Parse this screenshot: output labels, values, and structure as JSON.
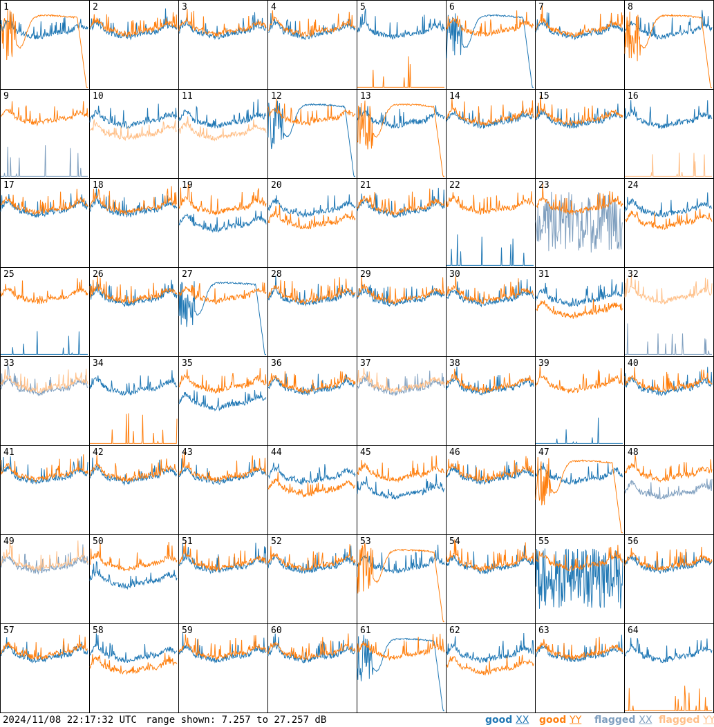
{
  "chart_data": {
    "type": "line",
    "layout": "8x8 small multiples",
    "panel_labels": [
      "1",
      "2",
      "3",
      "4",
      "5",
      "6",
      "7",
      "8",
      "9",
      "10",
      "11",
      "12",
      "13",
      "14",
      "15",
      "16",
      "17",
      "18",
      "19",
      "20",
      "21",
      "22",
      "23",
      "24",
      "25",
      "26",
      "27",
      "28",
      "29",
      "30",
      "31",
      "32",
      "33",
      "34",
      "35",
      "36",
      "37",
      "38",
      "39",
      "40",
      "41",
      "42",
      "43",
      "44",
      "45",
      "46",
      "47",
      "48",
      "49",
      "50",
      "51",
      "52",
      "53",
      "54",
      "55",
      "56",
      "57",
      "58",
      "59",
      "60",
      "61",
      "62",
      "63",
      "64"
    ],
    "range_db": [
      7.257,
      27.257
    ],
    "series_styles": [
      {
        "name": "good XX",
        "color": "#1f77b4"
      },
      {
        "name": "good YY",
        "color": "#ff7f0e"
      },
      {
        "name": "flagged XX",
        "color": "#7f9fbf"
      },
      {
        "name": "flagged YY",
        "color": "#ffbf87"
      }
    ],
    "grid": false,
    "panels": [
      {
        "xx": "good",
        "yy": "good",
        "xx_shape": "normal",
        "yy_shape": "rolloff"
      },
      {
        "xx": "good",
        "yy": "good",
        "xx_shape": "normal",
        "yy_shape": "normal"
      },
      {
        "xx": "good",
        "yy": "good",
        "xx_shape": "normal",
        "yy_shape": "normal"
      },
      {
        "xx": "good",
        "yy": "good",
        "xx_shape": "normal",
        "yy_shape": "normal"
      },
      {
        "xx": "good",
        "yy": "good",
        "xx_shape": "normal",
        "yy_shape": "spikes"
      },
      {
        "xx": "good",
        "yy": "good",
        "xx_shape": "rolloff",
        "yy_shape": "normal"
      },
      {
        "xx": "good",
        "yy": "good",
        "xx_shape": "normal",
        "yy_shape": "normal"
      },
      {
        "xx": "good",
        "yy": "good",
        "xx_shape": "normal",
        "yy_shape": "rolloff"
      },
      {
        "xx": "flagged",
        "yy": "good",
        "xx_shape": "spikes",
        "yy_shape": "normal"
      },
      {
        "xx": "good",
        "yy": "flagged",
        "xx_shape": "normal",
        "yy_shape": "low"
      },
      {
        "xx": "good",
        "yy": "flagged",
        "xx_shape": "normal",
        "yy_shape": "low"
      },
      {
        "xx": "good",
        "yy": "good",
        "xx_shape": "rolloff",
        "yy_shape": "normal"
      },
      {
        "xx": "good",
        "yy": "good",
        "xx_shape": "normal",
        "yy_shape": "rolloff"
      },
      {
        "xx": "good",
        "yy": "good",
        "xx_shape": "normal",
        "yy_shape": "normal"
      },
      {
        "xx": "good",
        "yy": "good",
        "xx_shape": "normal",
        "yy_shape": "normal"
      },
      {
        "xx": "good",
        "yy": "flagged",
        "xx_shape": "normal",
        "yy_shape": "spikes"
      },
      {
        "xx": "good",
        "yy": "good",
        "xx_shape": "normal",
        "yy_shape": "normal"
      },
      {
        "xx": "good",
        "yy": "good",
        "xx_shape": "normal",
        "yy_shape": "normal"
      },
      {
        "xx": "good",
        "yy": "good",
        "xx_shape": "low",
        "yy_shape": "normal"
      },
      {
        "xx": "good",
        "yy": "good",
        "xx_shape": "normal",
        "yy_shape": "low"
      },
      {
        "xx": "good",
        "yy": "good",
        "xx_shape": "normal",
        "yy_shape": "normal"
      },
      {
        "xx": "good",
        "yy": "good",
        "xx_shape": "spikes",
        "yy_shape": "normal"
      },
      {
        "xx": "flagged",
        "yy": "good",
        "xx_shape": "noise",
        "yy_shape": "normal"
      },
      {
        "xx": "good",
        "yy": "good",
        "xx_shape": "normal",
        "yy_shape": "low"
      },
      {
        "xx": "good",
        "yy": "good",
        "xx_shape": "spikes",
        "yy_shape": "normal"
      },
      {
        "xx": "good",
        "yy": "good",
        "xx_shape": "normal",
        "yy_shape": "normal"
      },
      {
        "xx": "good",
        "yy": "good",
        "xx_shape": "rolloff",
        "yy_shape": "normal"
      },
      {
        "xx": "good",
        "yy": "good",
        "xx_shape": "normal",
        "yy_shape": "normal"
      },
      {
        "xx": "good",
        "yy": "good",
        "xx_shape": "normal",
        "yy_shape": "normal"
      },
      {
        "xx": "good",
        "yy": "good",
        "xx_shape": "normal",
        "yy_shape": "normal"
      },
      {
        "xx": "good",
        "yy": "good",
        "xx_shape": "normal",
        "yy_shape": "low"
      },
      {
        "xx": "flagged",
        "yy": "flagged",
        "xx_shape": "spikes",
        "yy_shape": "normal"
      },
      {
        "xx": "flagged",
        "yy": "flagged",
        "xx_shape": "normal",
        "yy_shape": "normal"
      },
      {
        "xx": "good",
        "yy": "good",
        "xx_shape": "normal",
        "yy_shape": "spikes"
      },
      {
        "xx": "good",
        "yy": "good",
        "xx_shape": "low",
        "yy_shape": "normal"
      },
      {
        "xx": "good",
        "yy": "good",
        "xx_shape": "normal",
        "yy_shape": "normal"
      },
      {
        "xx": "flagged",
        "yy": "flagged",
        "xx_shape": "normal",
        "yy_shape": "normal"
      },
      {
        "xx": "good",
        "yy": "good",
        "xx_shape": "normal",
        "yy_shape": "normal"
      },
      {
        "xx": "good",
        "yy": "good",
        "xx_shape": "spikes",
        "yy_shape": "normal"
      },
      {
        "xx": "good",
        "yy": "good",
        "xx_shape": "normal",
        "yy_shape": "normal"
      },
      {
        "xx": "good",
        "yy": "good",
        "xx_shape": "normal",
        "yy_shape": "normal"
      },
      {
        "xx": "good",
        "yy": "good",
        "xx_shape": "normal",
        "yy_shape": "normal"
      },
      {
        "xx": "good",
        "yy": "good",
        "xx_shape": "normal",
        "yy_shape": "normal"
      },
      {
        "xx": "good",
        "yy": "good",
        "xx_shape": "normal",
        "yy_shape": "low"
      },
      {
        "xx": "good",
        "yy": "good",
        "xx_shape": "low",
        "yy_shape": "normal"
      },
      {
        "xx": "good",
        "yy": "good",
        "xx_shape": "normal",
        "yy_shape": "normal"
      },
      {
        "xx": "good",
        "yy": "good",
        "xx_shape": "normal",
        "yy_shape": "rolloff"
      },
      {
        "xx": "flagged",
        "yy": "good",
        "xx_shape": "low",
        "yy_shape": "normal"
      },
      {
        "xx": "flagged",
        "yy": "flagged",
        "xx_shape": "normal",
        "yy_shape": "normal"
      },
      {
        "xx": "good",
        "yy": "good",
        "xx_shape": "low",
        "yy_shape": "normal"
      },
      {
        "xx": "good",
        "yy": "good",
        "xx_shape": "normal",
        "yy_shape": "normal"
      },
      {
        "xx": "good",
        "yy": "good",
        "xx_shape": "normal",
        "yy_shape": "normal"
      },
      {
        "xx": "good",
        "yy": "good",
        "xx_shape": "normal",
        "yy_shape": "rolloff"
      },
      {
        "xx": "good",
        "yy": "good",
        "xx_shape": "normal",
        "yy_shape": "normal"
      },
      {
        "xx": "good",
        "yy": "good",
        "xx_shape": "noise",
        "yy_shape": "normal"
      },
      {
        "xx": "good",
        "yy": "good",
        "xx_shape": "normal",
        "yy_shape": "normal"
      },
      {
        "xx": "good",
        "yy": "good",
        "xx_shape": "normal",
        "yy_shape": "normal"
      },
      {
        "xx": "good",
        "yy": "good",
        "xx_shape": "normal",
        "yy_shape": "low"
      },
      {
        "xx": "good",
        "yy": "good",
        "xx_shape": "normal",
        "yy_shape": "normal"
      },
      {
        "xx": "good",
        "yy": "good",
        "xx_shape": "normal",
        "yy_shape": "normal"
      },
      {
        "xx": "good",
        "yy": "good",
        "xx_shape": "rolloff",
        "yy_shape": "normal"
      },
      {
        "xx": "good",
        "yy": "good",
        "xx_shape": "normal",
        "yy_shape": "low"
      },
      {
        "xx": "good",
        "yy": "good",
        "xx_shape": "normal",
        "yy_shape": "normal"
      },
      {
        "xx": "good",
        "yy": "good",
        "xx_shape": "normal",
        "yy_shape": "spikes"
      }
    ]
  },
  "footer": {
    "timestamp": "2024/11/08 22:17:32 UTC",
    "range_text": "range shown: 7.257 to 27.257 dB",
    "legend": [
      {
        "word": "good",
        "pol": "XX",
        "color": "#1f77b4"
      },
      {
        "word": "good",
        "pol": "YY",
        "color": "#ff7f0e"
      },
      {
        "word": "flagged",
        "pol": "XX",
        "color": "#7f9fbf"
      },
      {
        "word": "flagged",
        "pol": "YY",
        "color": "#ffbf87"
      }
    ]
  }
}
